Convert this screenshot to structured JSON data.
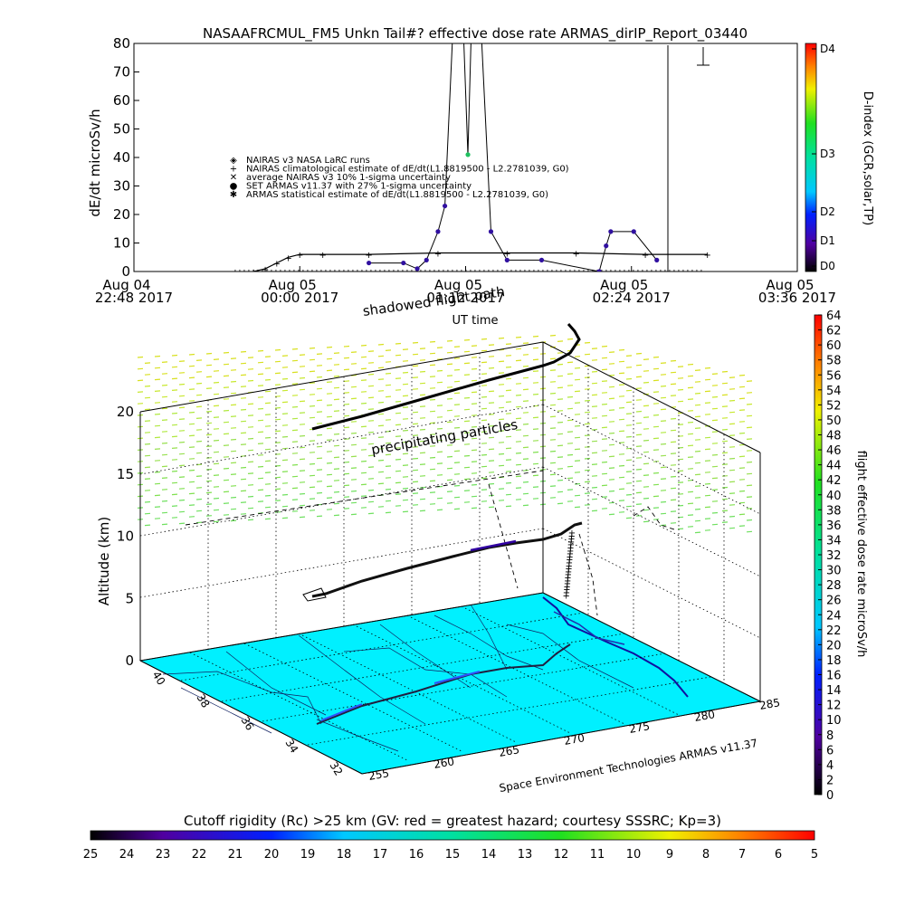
{
  "title": "NASAAFRCMUL_FM5 Unkn Tail#? effective dose rate ARMAS_dirIP_Report_03440",
  "chart_data": [
    {
      "type": "line",
      "ylabel": "dE/dt microSv/h",
      "xlabel": "UT time",
      "ylim": [
        0,
        80
      ],
      "yticks": [
        "0",
        "10",
        "20",
        "30",
        "40",
        "50",
        "60",
        "70",
        "80"
      ],
      "xlim": [
        "2017-08-04T22:48",
        "2017-08-05T03:36"
      ],
      "xticks": [
        {
          "day": "Aug 04",
          "time": "22:48 2017",
          "t": "2017-08-04T22:48"
        },
        {
          "day": "Aug 05",
          "time": "00:00 2017",
          "t": "2017-08-05T00:00"
        },
        {
          "day": "Aug 05",
          "time": "01:12 2017",
          "t": "2017-08-05T01:12"
        },
        {
          "day": "Aug 05",
          "time": "02:24 2017",
          "t": "2017-08-05T02:24"
        },
        {
          "day": "Aug 05",
          "time": "03:36 2017",
          "t": "2017-08-05T03:36"
        }
      ],
      "legend_placement": "center-left",
      "legend": [
        {
          "symbol": "◈",
          "label": "NAIRAS v3 NASA LaRC runs"
        },
        {
          "symbol": "+",
          "label": "NAIRAS climatological estimate of dE/dt(L1.8819500 - L2.2781039, G0)"
        },
        {
          "symbol": "✕",
          "label": "average NAIRAS v3 10% 1-sigma uncertainty"
        },
        {
          "symbol": "●",
          "label": "SET ARMAS v11.37 with 27% 1-sigma uncertainty"
        },
        {
          "symbol": "✱",
          "label": "ARMAS statistical estimate of dE/dt(L1.8819500 - L2.2781039, G0)"
        }
      ],
      "series": [
        {
          "name": "NAIRAS v3 NASA LaRC runs",
          "x": [
            "2017-08-04T23:40",
            "2017-08-04T23:45",
            "2017-08-04T23:50",
            "2017-08-04T23:55",
            "2017-08-05T00:00",
            "2017-08-05T00:10",
            "2017-08-05T00:30",
            "2017-08-05T01:00",
            "2017-08-05T01:30",
            "2017-08-05T02:00",
            "2017-08-05T02:30",
            "2017-08-05T02:57"
          ],
          "y": [
            0,
            1,
            3,
            5,
            6,
            6,
            6,
            6.5,
            6.5,
            6.5,
            6,
            6
          ]
        },
        {
          "name": "SET ARMAS v11.37 with 27% 1-sigma uncertainty",
          "x": [
            "2017-08-05T00:30",
            "2017-08-05T00:45",
            "2017-08-05T00:51",
            "2017-08-05T00:55",
            "2017-08-05T01:00",
            "2017-08-05T01:03",
            "2017-08-05T01:09",
            "2017-08-05T01:13",
            "2017-08-05T01:16",
            "2017-08-05T01:23",
            "2017-08-05T01:30",
            "2017-08-05T01:45",
            "2017-08-05T02:10",
            "2017-08-05T02:13",
            "2017-08-05T02:15",
            "2017-08-05T02:25",
            "2017-08-05T02:35"
          ],
          "y": [
            3,
            3,
            1,
            4,
            14,
            23,
            130,
            41,
            130,
            14,
            4,
            4,
            0,
            9,
            14,
            14,
            4
          ]
        }
      ],
      "right_axis": {
        "label": "D-index (GCR,solar,TP)",
        "ticks": [
          "D0",
          "D1",
          "D2",
          "D3",
          "D4"
        ]
      }
    },
    {
      "type": "scatter",
      "z_label": "Altitude (km)",
      "zticks": [
        "0",
        "5",
        "10",
        "15",
        "20"
      ],
      "lat_ticks": [
        "40",
        "38",
        "36",
        "34",
        "32"
      ],
      "lon_ticks": [
        "255",
        "260",
        "265",
        "270",
        "275",
        "280",
        "285"
      ],
      "annotations": [
        "shadowed flight path",
        "precipitating particles"
      ],
      "credit": "Space Environment Technologies ARMAS v11.37",
      "colorbar": {
        "label": "flight effective dose rate microSv/h",
        "range": [
          0,
          64
        ],
        "ticks": [
          "0",
          "2",
          "4",
          "6",
          "8",
          "10",
          "12",
          "14",
          "16",
          "18",
          "20",
          "22",
          "24",
          "26",
          "28",
          "30",
          "32",
          "34",
          "36",
          "38",
          "40",
          "42",
          "44",
          "46",
          "48",
          "50",
          "52",
          "54",
          "56",
          "58",
          "60",
          "62",
          "64"
        ]
      }
    },
    {
      "type": "heatmap",
      "title": "Cutoff rigidity (Rc) >25 km (GV: red = greatest hazard; courtesy SSSRC; Kp=3)",
      "ticks": [
        "25",
        "24",
        "23",
        "22",
        "21",
        "20",
        "19",
        "18",
        "17",
        "16",
        "15",
        "14",
        "13",
        "12",
        "11",
        "10",
        "9",
        "8",
        "7",
        "6",
        "5"
      ]
    }
  ],
  "colors": {
    "map_fill": "#00f0ff",
    "layer_top": "#c8e830",
    "layer_mid": "#80e040",
    "flight_path": "#000000",
    "dose_dots": "#3000a0"
  }
}
